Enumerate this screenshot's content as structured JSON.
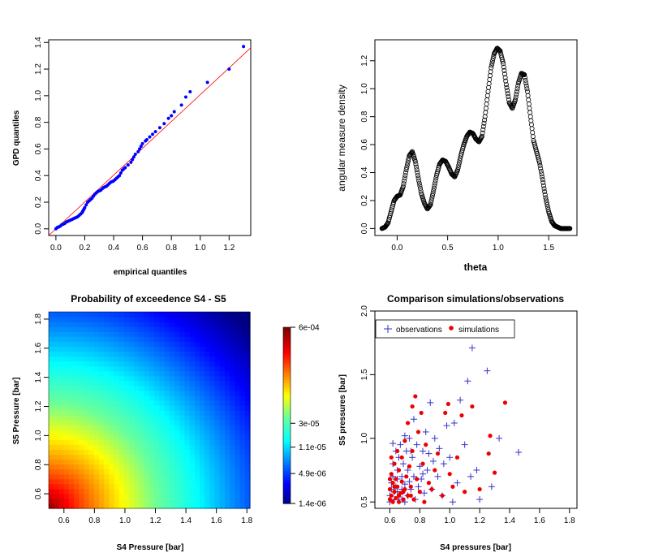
{
  "colors": {
    "qq_points": "#0000ff",
    "qq_line": "#ff0000",
    "observations": "#3333cc",
    "simulations": "#ee0000"
  },
  "chart_data": [
    {
      "id": "qq",
      "type": "scatter",
      "xlabel": "empirical quantiles",
      "ylabel": "GPD quantiles",
      "xlim": [
        -0.05,
        1.35
      ],
      "ylim": [
        -0.05,
        1.42
      ],
      "xticks": [
        0.0,
        0.2,
        0.4,
        0.6,
        0.8,
        1.0,
        1.2
      ],
      "yticks": [
        0.0,
        0.2,
        0.4,
        0.6,
        0.8,
        1.0,
        1.2,
        1.4
      ],
      "reference_line": [
        [
          -0.05,
          -0.05
        ],
        [
          1.35,
          1.36
        ]
      ],
      "points": [
        [
          0.0,
          0.0
        ],
        [
          0.01,
          0.01
        ],
        [
          0.02,
          0.015
        ],
        [
          0.03,
          0.02
        ],
        [
          0.04,
          0.03
        ],
        [
          0.05,
          0.035
        ],
        [
          0.06,
          0.04
        ],
        [
          0.07,
          0.05
        ],
        [
          0.08,
          0.055
        ],
        [
          0.09,
          0.06
        ],
        [
          0.1,
          0.065
        ],
        [
          0.11,
          0.07
        ],
        [
          0.12,
          0.075
        ],
        [
          0.13,
          0.08
        ],
        [
          0.14,
          0.085
        ],
        [
          0.15,
          0.09
        ],
        [
          0.16,
          0.1
        ],
        [
          0.17,
          0.11
        ],
        [
          0.18,
          0.12
        ],
        [
          0.185,
          0.13
        ],
        [
          0.19,
          0.14
        ],
        [
          0.195,
          0.15
        ],
        [
          0.2,
          0.16
        ],
        [
          0.21,
          0.18
        ],
        [
          0.22,
          0.2
        ],
        [
          0.23,
          0.21
        ],
        [
          0.24,
          0.22
        ],
        [
          0.25,
          0.23
        ],
        [
          0.26,
          0.245
        ],
        [
          0.27,
          0.26
        ],
        [
          0.28,
          0.27
        ],
        [
          0.29,
          0.28
        ],
        [
          0.3,
          0.285
        ],
        [
          0.31,
          0.29
        ],
        [
          0.32,
          0.3
        ],
        [
          0.33,
          0.31
        ],
        [
          0.34,
          0.315
        ],
        [
          0.35,
          0.32
        ],
        [
          0.36,
          0.33
        ],
        [
          0.37,
          0.34
        ],
        [
          0.38,
          0.35
        ],
        [
          0.39,
          0.355
        ],
        [
          0.4,
          0.36
        ],
        [
          0.41,
          0.37
        ],
        [
          0.42,
          0.38
        ],
        [
          0.43,
          0.39
        ],
        [
          0.44,
          0.4
        ],
        [
          0.45,
          0.42
        ],
        [
          0.46,
          0.44
        ],
        [
          0.47,
          0.45
        ],
        [
          0.48,
          0.46
        ],
        [
          0.5,
          0.48
        ],
        [
          0.52,
          0.5
        ],
        [
          0.53,
          0.52
        ],
        [
          0.54,
          0.54
        ],
        [
          0.55,
          0.56
        ],
        [
          0.57,
          0.58
        ],
        [
          0.58,
          0.6
        ],
        [
          0.59,
          0.62
        ],
        [
          0.6,
          0.64
        ],
        [
          0.62,
          0.66
        ],
        [
          0.63,
          0.67
        ],
        [
          0.65,
          0.69
        ],
        [
          0.67,
          0.71
        ],
        [
          0.69,
          0.73
        ],
        [
          0.72,
          0.76
        ],
        [
          0.75,
          0.79
        ],
        [
          0.78,
          0.83
        ],
        [
          0.8,
          0.85
        ],
        [
          0.82,
          0.88
        ],
        [
          0.87,
          0.93
        ],
        [
          0.9,
          0.99
        ],
        [
          0.93,
          1.03
        ],
        [
          1.05,
          1.1
        ],
        [
          1.2,
          1.2
        ],
        [
          1.3,
          1.37
        ]
      ]
    },
    {
      "id": "angular",
      "type": "line",
      "xlabel": "theta",
      "ylabel": "angular measure density",
      "xlim": [
        -0.22,
        1.78
      ],
      "ylim": [
        -0.05,
        1.35
      ],
      "xticks": [
        0.0,
        0.5,
        1.0,
        1.5
      ],
      "yticks": [
        0.0,
        0.2,
        0.4,
        0.6,
        0.8,
        1.0,
        1.2
      ],
      "x": [
        -0.15,
        -0.12,
        -0.09,
        -0.06,
        -0.03,
        0.0,
        0.03,
        0.06,
        0.09,
        0.12,
        0.15,
        0.18,
        0.21,
        0.24,
        0.27,
        0.3,
        0.33,
        0.36,
        0.39,
        0.42,
        0.45,
        0.48,
        0.51,
        0.54,
        0.57,
        0.6,
        0.63,
        0.66,
        0.69,
        0.72,
        0.75,
        0.78,
        0.81,
        0.84,
        0.87,
        0.9,
        0.93,
        0.96,
        0.99,
        1.02,
        1.05,
        1.08,
        1.11,
        1.14,
        1.17,
        1.2,
        1.23,
        1.26,
        1.29,
        1.32,
        1.35,
        1.38,
        1.41,
        1.44,
        1.47,
        1.5,
        1.53,
        1.56,
        1.59,
        1.62,
        1.65,
        1.68,
        1.71
      ],
      "y": [
        0.0,
        0.01,
        0.04,
        0.12,
        0.2,
        0.23,
        0.24,
        0.3,
        0.42,
        0.52,
        0.55,
        0.48,
        0.36,
        0.25,
        0.18,
        0.14,
        0.17,
        0.27,
        0.38,
        0.46,
        0.49,
        0.48,
        0.44,
        0.39,
        0.37,
        0.42,
        0.52,
        0.6,
        0.66,
        0.69,
        0.68,
        0.64,
        0.62,
        0.66,
        0.8,
        0.98,
        1.15,
        1.25,
        1.29,
        1.27,
        1.18,
        1.03,
        0.9,
        0.86,
        0.92,
        1.04,
        1.11,
        1.1,
        0.98,
        0.8,
        0.63,
        0.55,
        0.47,
        0.35,
        0.22,
        0.12,
        0.05,
        0.02,
        0.01,
        0.0,
        0.0,
        0.0,
        0.0
      ]
    },
    {
      "id": "heatmap",
      "type": "heatmap",
      "title": "Probability of exceedence S4 - S5",
      "xlabel": "S4 Pressure [bar]",
      "ylabel": "S5 Pressure [bar]",
      "xlim": [
        0.5,
        1.82
      ],
      "ylim": [
        0.5,
        1.85
      ],
      "xticks": [
        0.6,
        0.8,
        1.0,
        1.2,
        1.4,
        1.6,
        1.8
      ],
      "yticks": [
        0.6,
        0.8,
        1.0,
        1.2,
        1.4,
        1.6,
        1.8
      ],
      "colorbar_labels": [
        "6e-04",
        "3e-05",
        "1.1e-05",
        "4.9e-06",
        "1.4e-06"
      ],
      "colorbar_positions": [
        1.0,
        0.455,
        0.32,
        0.17,
        0.0
      ]
    },
    {
      "id": "comparison",
      "type": "scatter",
      "title": "Comparison simulations/observations",
      "xlabel": "S4 pressures [bar]",
      "ylabel": "S5 pressures [bar]",
      "xlim": [
        0.5,
        1.85
      ],
      "ylim": [
        0.45,
        2.0
      ],
      "xticks": [
        0.6,
        0.8,
        1.0,
        1.2,
        1.4,
        1.6,
        1.8
      ],
      "yticks": [
        0.5,
        1.0,
        1.5,
        2.0
      ],
      "legend": {
        "position": "top-left",
        "entries": [
          "observations",
          "simulations"
        ]
      },
      "observations": [
        [
          0.6,
          0.5
        ],
        [
          0.6,
          0.55
        ],
        [
          0.61,
          0.6
        ],
        [
          0.61,
          0.65
        ],
        [
          0.62,
          0.7
        ],
        [
          0.62,
          0.8
        ],
        [
          0.63,
          0.52
        ],
        [
          0.63,
          0.58
        ],
        [
          0.64,
          0.62
        ],
        [
          0.64,
          0.9
        ],
        [
          0.65,
          0.68
        ],
        [
          0.65,
          0.75
        ],
        [
          0.66,
          0.52
        ],
        [
          0.66,
          0.85
        ],
        [
          0.67,
          0.56
        ],
        [
          0.67,
          0.95
        ],
        [
          0.68,
          0.6
        ],
        [
          0.68,
          0.7
        ],
        [
          0.69,
          0.8
        ],
        [
          0.7,
          0.5
        ],
        [
          0.7,
          0.64
        ],
        [
          0.71,
          0.9
        ],
        [
          0.72,
          0.55
        ],
        [
          0.72,
          0.75
        ],
        [
          0.73,
          0.66
        ],
        [
          0.73,
          1.0
        ],
        [
          0.74,
          0.6
        ],
        [
          0.75,
          0.85
        ],
        [
          0.76,
          0.7
        ],
        [
          0.77,
          0.52
        ],
        [
          0.78,
          0.95
        ],
        [
          0.79,
          0.62
        ],
        [
          0.8,
          0.78
        ],
        [
          0.81,
          0.68
        ],
        [
          0.82,
          0.9
        ],
        [
          0.83,
          0.57
        ],
        [
          0.84,
          1.05
        ],
        [
          0.85,
          0.75
        ],
        [
          0.86,
          0.88
        ],
        [
          0.87,
          1.28
        ],
        [
          0.88,
          0.6
        ],
        [
          0.89,
          0.82
        ],
        [
          0.9,
          1.0
        ],
        [
          0.92,
          0.7
        ],
        [
          0.93,
          0.92
        ],
        [
          0.95,
          0.55
        ],
        [
          0.96,
          0.8
        ],
        [
          0.98,
          1.1
        ],
        [
          1.0,
          0.85
        ],
        [
          1.02,
          0.5
        ],
        [
          1.03,
          1.12
        ],
        [
          1.05,
          0.65
        ],
        [
          1.07,
          1.3
        ],
        [
          1.1,
          0.95
        ],
        [
          1.12,
          1.45
        ],
        [
          1.14,
          0.7
        ],
        [
          1.15,
          1.71
        ],
        [
          1.18,
          0.75
        ],
        [
          1.2,
          0.52
        ],
        [
          1.25,
          1.53
        ],
        [
          1.28,
          0.62
        ],
        [
          1.33,
          1.0
        ],
        [
          1.46,
          0.89
        ],
        [
          0.62,
          0.96
        ],
        [
          0.65,
          0.58
        ],
        [
          0.68,
          0.52
        ],
        [
          0.7,
          1.02
        ],
        [
          0.74,
          0.9
        ],
        [
          0.76,
          1.15
        ],
        [
          0.82,
          0.72
        ]
      ],
      "simulations": [
        [
          0.6,
          0.52
        ],
        [
          0.6,
          0.6
        ],
        [
          0.61,
          0.55
        ],
        [
          0.61,
          0.72
        ],
        [
          0.62,
          0.5
        ],
        [
          0.62,
          0.65
        ],
        [
          0.63,
          0.8
        ],
        [
          0.63,
          0.58
        ],
        [
          0.64,
          0.53
        ],
        [
          0.64,
          0.68
        ],
        [
          0.65,
          0.62
        ],
        [
          0.65,
          0.9
        ],
        [
          0.66,
          0.5
        ],
        [
          0.66,
          0.75
        ],
        [
          0.67,
          0.57
        ],
        [
          0.68,
          0.66
        ],
        [
          0.68,
          0.85
        ],
        [
          0.69,
          0.52
        ],
        [
          0.7,
          0.6
        ],
        [
          0.7,
          0.98
        ],
        [
          0.71,
          0.7
        ],
        [
          0.72,
          0.55
        ],
        [
          0.72,
          1.12
        ],
        [
          0.73,
          0.78
        ],
        [
          0.74,
          0.62
        ],
        [
          0.75,
          0.9
        ],
        [
          0.75,
          1.25
        ],
        [
          0.76,
          0.52
        ],
        [
          0.77,
          1.33
        ],
        [
          0.78,
          0.68
        ],
        [
          0.79,
          1.05
        ],
        [
          0.8,
          0.58
        ],
        [
          0.81,
          1.2
        ],
        [
          0.82,
          0.8
        ],
        [
          0.83,
          0.5
        ],
        [
          0.84,
          0.95
        ],
        [
          0.86,
          0.65
        ],
        [
          0.88,
          0.6
        ],
        [
          0.9,
          0.75
        ],
        [
          0.92,
          0.88
        ],
        [
          0.95,
          0.55
        ],
        [
          0.97,
          1.2
        ],
        [
          0.99,
          1.27
        ],
        [
          1.0,
          0.72
        ],
        [
          1.02,
          0.62
        ],
        [
          1.05,
          0.85
        ],
        [
          1.08,
          1.18
        ],
        [
          1.1,
          0.58
        ],
        [
          1.15,
          1.25
        ],
        [
          1.2,
          0.6
        ],
        [
          1.26,
          0.88
        ],
        [
          1.3,
          0.73
        ],
        [
          1.37,
          1.28
        ],
        [
          1.27,
          1.02
        ],
        [
          0.6,
          0.68
        ],
        [
          0.61,
          0.85
        ],
        [
          0.63,
          0.62
        ],
        [
          0.66,
          0.55
        ],
        [
          0.69,
          0.58
        ],
        [
          0.74,
          0.55
        ]
      ]
    }
  ]
}
